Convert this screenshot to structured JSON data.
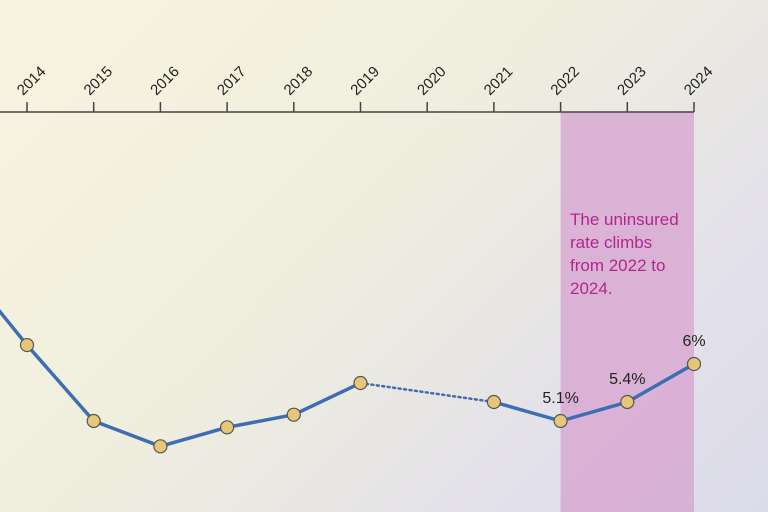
{
  "chart_data": {
    "type": "line",
    "title": "",
    "xlabel": "",
    "ylabel": "",
    "x_ticks": [
      "2014",
      "2015",
      "2016",
      "2017",
      "2018",
      "2019",
      "2020",
      "2021",
      "2022",
      "2023",
      "2024"
    ],
    "x_axis_position": "top",
    "series": [
      {
        "points": [
          {
            "x": 2013,
            "y": 7.6
          },
          {
            "x": 2014,
            "y": 6.3
          },
          {
            "x": 2015,
            "y": 5.1
          },
          {
            "x": 2016,
            "y": 4.7
          },
          {
            "x": 2017,
            "y": 5.0
          },
          {
            "x": 2018,
            "y": 5.2
          },
          {
            "x": 2019,
            "y": 5.7
          },
          {
            "x": 2021,
            "y": 5.4
          },
          {
            "x": 2022,
            "y": 5.1
          },
          {
            "x": 2023,
            "y": 5.4
          },
          {
            "x": 2024,
            "y": 6.0
          }
        ],
        "dotted_segment": [
          2019,
          2021
        ],
        "color": "#3f6db3",
        "marker_color": "#e6c77a"
      }
    ],
    "data_labels": [
      {
        "x": 2022,
        "text": "5.1%"
      },
      {
        "x": 2023,
        "text": "5.4%"
      },
      {
        "x": 2024,
        "text": "6%"
      }
    ],
    "highlight": {
      "from": 2022,
      "to": 2024,
      "color": "#d7a9d2"
    },
    "annotation": "The uninsured rate climbs from 2022 to 2024.",
    "annotation_color": "#b3268c",
    "grid": false
  }
}
